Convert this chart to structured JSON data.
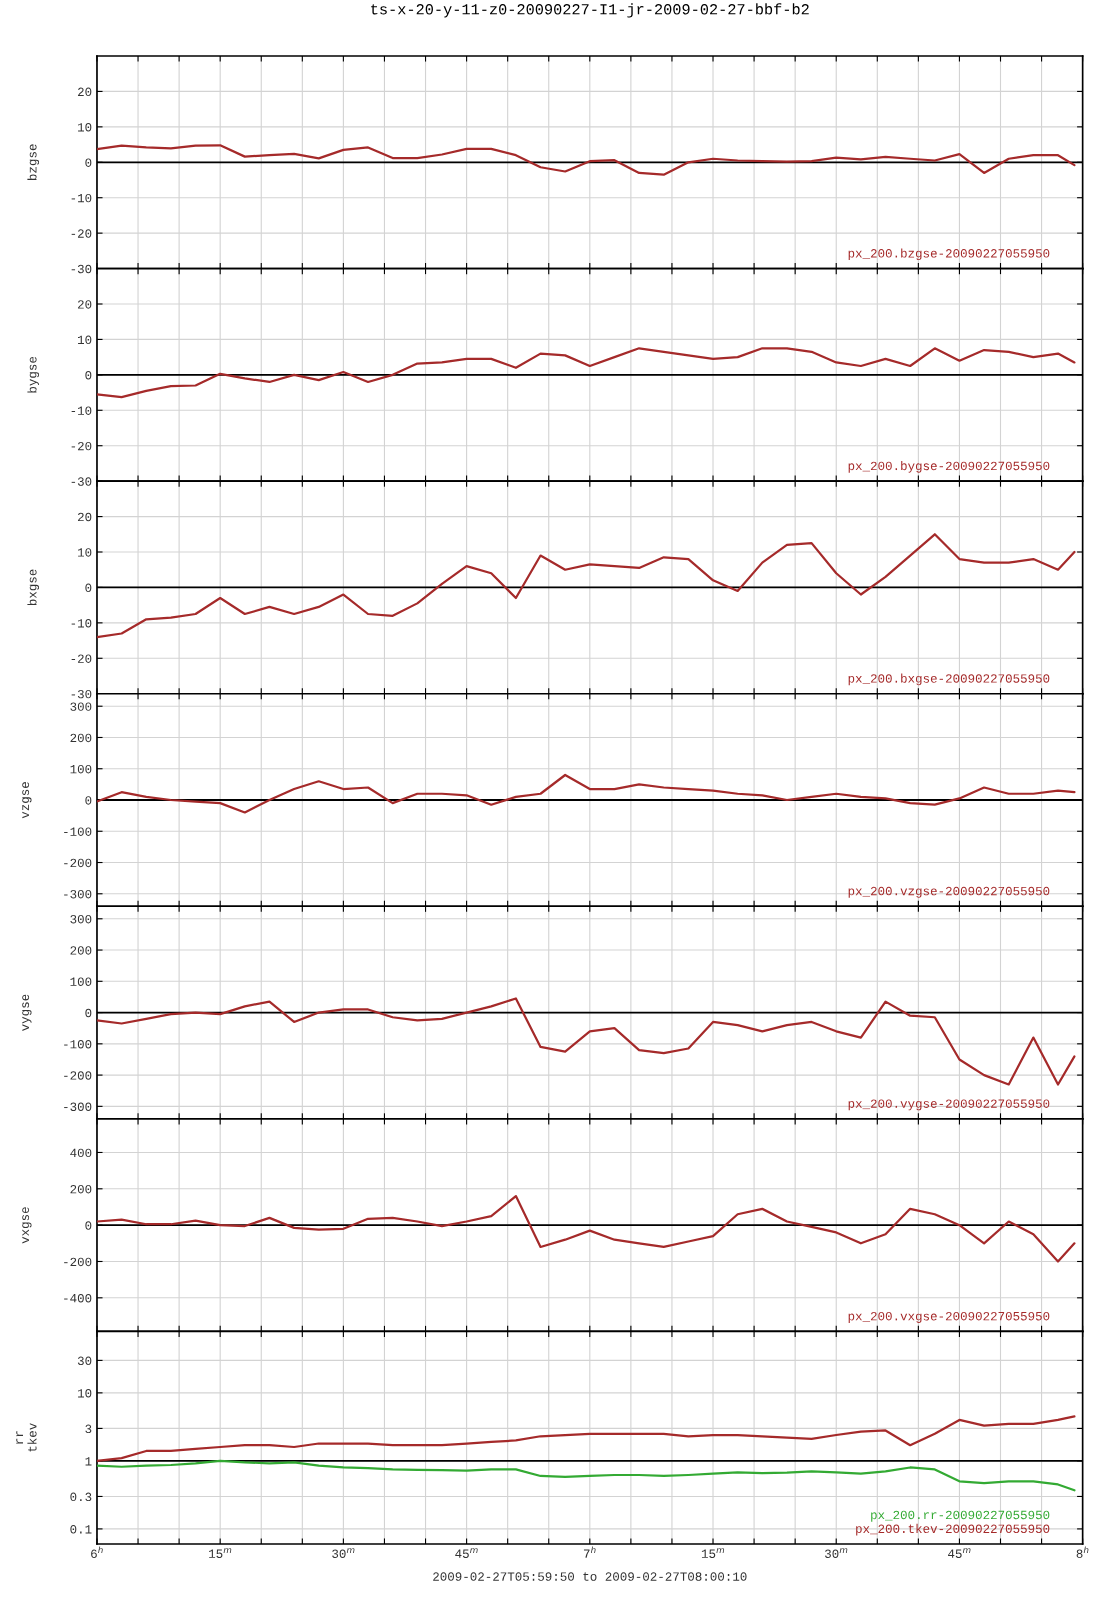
{
  "chart_data": [
    {
      "type": "line",
      "title": "ts-x-20-y-11-z0-20090227-I1-jr-2009-02-27-bbf-b2",
      "ylabel": "bzgse",
      "tick_labels": "y",
      "grid": true,
      "xlim": [
        "2009-02-27T06:00",
        "2009-02-27T08:00"
      ],
      "xticks": [
        {
          "value": "2009-02-27T06:00",
          "label": null
        },
        {
          "value": "2009-02-27T06:05",
          "label": null
        },
        {
          "value": "2009-02-27T06:10",
          "label": null
        },
        {
          "value": "2009-02-27T06:15",
          "label": null
        },
        {
          "value": "2009-02-27T06:20",
          "label": null
        },
        {
          "value": "2009-02-27T06:25",
          "label": null
        },
        {
          "value": "2009-02-27T06:30",
          "label": null
        },
        {
          "value": "2009-02-27T06:35",
          "label": null
        },
        {
          "value": "2009-02-27T06:40",
          "label": null
        },
        {
          "value": "2009-02-27T06:45",
          "label": null
        },
        {
          "value": "2009-02-27T06:50",
          "label": null
        },
        {
          "value": "2009-02-27T06:55",
          "label": null
        },
        {
          "value": "2009-02-27T07:00",
          "label": null
        },
        {
          "value": "2009-02-27T07:05",
          "label": null
        },
        {
          "value": "2009-02-27T07:10",
          "label": null
        },
        {
          "value": "2009-02-27T07:15",
          "label": null
        },
        {
          "value": "2009-02-27T07:20",
          "label": null
        },
        {
          "value": "2009-02-27T07:25",
          "label": null
        },
        {
          "value": "2009-02-27T07:30",
          "label": null
        },
        {
          "value": "2009-02-27T07:35",
          "label": null
        },
        {
          "value": "2009-02-27T07:40",
          "label": null
        },
        {
          "value": "2009-02-27T07:45",
          "label": null
        },
        {
          "value": "2009-02-27T07:50",
          "label": null
        },
        {
          "value": "2009-02-27T07:55",
          "label": null
        },
        {
          "value": "2009-02-27T08:00",
          "label": null
        }
      ],
      "ylim": [
        -30,
        30
      ],
      "yticks": [
        -30,
        -20,
        -10,
        0,
        10,
        20
      ],
      "ref_lines": [
        {
          "axis": "y",
          "value": 0,
          "color": "#000000"
        }
      ],
      "x": [
        "2009-02-27T06:00",
        "2009-02-27T06:03",
        "2009-02-27T06:06",
        "2009-02-27T06:09",
        "2009-02-27T06:12",
        "2009-02-27T06:15",
        "2009-02-27T06:18",
        "2009-02-27T06:21",
        "2009-02-27T06:24",
        "2009-02-27T06:27",
        "2009-02-27T06:30",
        "2009-02-27T06:33",
        "2009-02-27T06:36",
        "2009-02-27T06:39",
        "2009-02-27T06:42",
        "2009-02-27T06:45",
        "2009-02-27T06:48",
        "2009-02-27T06:51",
        "2009-02-27T06:54",
        "2009-02-27T06:57",
        "2009-02-27T07:00",
        "2009-02-27T07:03",
        "2009-02-27T07:06",
        "2009-02-27T07:09",
        "2009-02-27T07:12",
        "2009-02-27T07:15",
        "2009-02-27T07:18",
        "2009-02-27T07:21",
        "2009-02-27T07:24",
        "2009-02-27T07:27",
        "2009-02-27T07:30",
        "2009-02-27T07:33",
        "2009-02-27T07:36",
        "2009-02-27T07:39",
        "2009-02-27T07:42",
        "2009-02-27T07:45",
        "2009-02-27T07:48",
        "2009-02-27T07:51",
        "2009-02-27T07:54",
        "2009-02-27T07:57",
        "2009-02-27T07:59"
      ],
      "series": [
        {
          "name": "px_200.bzgse-20090227055950",
          "color": "#a52a2a",
          "values": [
            3.7,
            4.7,
            4.2,
            3.9,
            4.7,
            4.8,
            1.6,
            2.0,
            2.4,
            1.1,
            3.5,
            4.2,
            1.2,
            1.2,
            2.2,
            3.8,
            3.8,
            2.0,
            -1.4,
            -2.6,
            0.3,
            0.6,
            -3.0,
            -3.5,
            0,
            1.0,
            0.5,
            0.3,
            0.2,
            0.3,
            1.3,
            0.8,
            1.5,
            1.0,
            0.5,
            2.3,
            -3.0,
            1.0,
            2.0,
            2.0,
            -0.8
          ]
        }
      ]
    },
    {
      "type": "line",
      "ylabel": "bygse",
      "tick_labels": "y",
      "grid": true,
      "xlim": [
        "2009-02-27T06:00",
        "2009-02-27T08:00"
      ],
      "xticks": [
        {
          "value": "2009-02-27T06:00",
          "label": null
        },
        {
          "value": "2009-02-27T06:05",
          "label": null
        },
        {
          "value": "2009-02-27T06:10",
          "label": null
        },
        {
          "value": "2009-02-27T06:15",
          "label": null
        },
        {
          "value": "2009-02-27T06:20",
          "label": null
        },
        {
          "value": "2009-02-27T06:25",
          "label": null
        },
        {
          "value": "2009-02-27T06:30",
          "label": null
        },
        {
          "value": "2009-02-27T06:35",
          "label": null
        },
        {
          "value": "2009-02-27T06:40",
          "label": null
        },
        {
          "value": "2009-02-27T06:45",
          "label": null
        },
        {
          "value": "2009-02-27T06:50",
          "label": null
        },
        {
          "value": "2009-02-27T06:55",
          "label": null
        },
        {
          "value": "2009-02-27T07:00",
          "label": null
        },
        {
          "value": "2009-02-27T07:05",
          "label": null
        },
        {
          "value": "2009-02-27T07:10",
          "label": null
        },
        {
          "value": "2009-02-27T07:15",
          "label": null
        },
        {
          "value": "2009-02-27T07:20",
          "label": null
        },
        {
          "value": "2009-02-27T07:25",
          "label": null
        },
        {
          "value": "2009-02-27T07:30",
          "label": null
        },
        {
          "value": "2009-02-27T07:35",
          "label": null
        },
        {
          "value": "2009-02-27T07:40",
          "label": null
        },
        {
          "value": "2009-02-27T07:45",
          "label": null
        },
        {
          "value": "2009-02-27T07:50",
          "label": null
        },
        {
          "value": "2009-02-27T07:55",
          "label": null
        },
        {
          "value": "2009-02-27T08:00",
          "label": null
        }
      ],
      "ylim": [
        -30,
        30
      ],
      "yticks": [
        -30,
        -20,
        -10,
        0,
        10,
        20
      ],
      "ref_lines": [
        {
          "axis": "y",
          "value": 0,
          "color": "#000000"
        }
      ],
      "x": [
        "2009-02-27T06:00",
        "2009-02-27T06:03",
        "2009-02-27T06:06",
        "2009-02-27T06:09",
        "2009-02-27T06:12",
        "2009-02-27T06:15",
        "2009-02-27T06:18",
        "2009-02-27T06:21",
        "2009-02-27T06:24",
        "2009-02-27T06:27",
        "2009-02-27T06:30",
        "2009-02-27T06:33",
        "2009-02-27T06:36",
        "2009-02-27T06:39",
        "2009-02-27T06:42",
        "2009-02-27T06:45",
        "2009-02-27T06:48",
        "2009-02-27T06:51",
        "2009-02-27T06:54",
        "2009-02-27T06:57",
        "2009-02-27T07:00",
        "2009-02-27T07:03",
        "2009-02-27T07:06",
        "2009-02-27T07:09",
        "2009-02-27T07:12",
        "2009-02-27T07:15",
        "2009-02-27T07:18",
        "2009-02-27T07:21",
        "2009-02-27T07:24",
        "2009-02-27T07:27",
        "2009-02-27T07:30",
        "2009-02-27T07:33",
        "2009-02-27T07:36",
        "2009-02-27T07:39",
        "2009-02-27T07:42",
        "2009-02-27T07:45",
        "2009-02-27T07:48",
        "2009-02-27T07:51",
        "2009-02-27T07:54",
        "2009-02-27T07:57",
        "2009-02-27T07:59"
      ],
      "series": [
        {
          "name": "px_200.bygse-20090227055950",
          "color": "#a52a2a",
          "values": [
            -5.5,
            -6.3,
            -4.5,
            -3.2,
            -3,
            0.3,
            -1,
            -2,
            0,
            -1.5,
            0.8,
            -2,
            0,
            3.2,
            3.5,
            4.5,
            4.5,
            2,
            6,
            5.5,
            2.5,
            5,
            7.5,
            6.5,
            5.5,
            4.5,
            5,
            7.5,
            7.5,
            6.5,
            3.5,
            2.5,
            4.5,
            2.5,
            7.5,
            4,
            7,
            6.5,
            5,
            6,
            3.5
          ]
        }
      ]
    },
    {
      "type": "line",
      "ylabel": "bxgse",
      "tick_labels": "y",
      "grid": true,
      "xlim": [
        "2009-02-27T06:00",
        "2009-02-27T08:00"
      ],
      "xticks": [
        {
          "value": "2009-02-27T06:00",
          "label": null
        },
        {
          "value": "2009-02-27T06:05",
          "label": null
        },
        {
          "value": "2009-02-27T06:10",
          "label": null
        },
        {
          "value": "2009-02-27T06:15",
          "label": null
        },
        {
          "value": "2009-02-27T06:20",
          "label": null
        },
        {
          "value": "2009-02-27T06:25",
          "label": null
        },
        {
          "value": "2009-02-27T06:30",
          "label": null
        },
        {
          "value": "2009-02-27T06:35",
          "label": null
        },
        {
          "value": "2009-02-27T06:40",
          "label": null
        },
        {
          "value": "2009-02-27T06:45",
          "label": null
        },
        {
          "value": "2009-02-27T06:50",
          "label": null
        },
        {
          "value": "2009-02-27T06:55",
          "label": null
        },
        {
          "value": "2009-02-27T07:00",
          "label": null
        },
        {
          "value": "2009-02-27T07:05",
          "label": null
        },
        {
          "value": "2009-02-27T07:10",
          "label": null
        },
        {
          "value": "2009-02-27T07:15",
          "label": null
        },
        {
          "value": "2009-02-27T07:20",
          "label": null
        },
        {
          "value": "2009-02-27T07:25",
          "label": null
        },
        {
          "value": "2009-02-27T07:30",
          "label": null
        },
        {
          "value": "2009-02-27T07:35",
          "label": null
        },
        {
          "value": "2009-02-27T07:40",
          "label": null
        },
        {
          "value": "2009-02-27T07:45",
          "label": null
        },
        {
          "value": "2009-02-27T07:50",
          "label": null
        },
        {
          "value": "2009-02-27T07:55",
          "label": null
        },
        {
          "value": "2009-02-27T08:00",
          "label": null
        }
      ],
      "ylim": [
        -30,
        30
      ],
      "yticks": [
        -30,
        -20,
        -10,
        0,
        10,
        20
      ],
      "ref_lines": [
        {
          "axis": "y",
          "value": 0,
          "color": "#000000"
        }
      ],
      "x": [
        "2009-02-27T06:00",
        "2009-02-27T06:03",
        "2009-02-27T06:06",
        "2009-02-27T06:09",
        "2009-02-27T06:12",
        "2009-02-27T06:15",
        "2009-02-27T06:18",
        "2009-02-27T06:21",
        "2009-02-27T06:24",
        "2009-02-27T06:27",
        "2009-02-27T06:30",
        "2009-02-27T06:33",
        "2009-02-27T06:36",
        "2009-02-27T06:39",
        "2009-02-27T06:42",
        "2009-02-27T06:45",
        "2009-02-27T06:48",
        "2009-02-27T06:51",
        "2009-02-27T06:54",
        "2009-02-27T06:57",
        "2009-02-27T07:00",
        "2009-02-27T07:03",
        "2009-02-27T07:06",
        "2009-02-27T07:09",
        "2009-02-27T07:12",
        "2009-02-27T07:15",
        "2009-02-27T07:18",
        "2009-02-27T07:21",
        "2009-02-27T07:24",
        "2009-02-27T07:27",
        "2009-02-27T07:30",
        "2009-02-27T07:33",
        "2009-02-27T07:36",
        "2009-02-27T07:39",
        "2009-02-27T07:42",
        "2009-02-27T07:45",
        "2009-02-27T07:48",
        "2009-02-27T07:51",
        "2009-02-27T07:54",
        "2009-02-27T07:57",
        "2009-02-27T07:59"
      ],
      "series": [
        {
          "name": "px_200.bxgse-20090227055950",
          "color": "#a52a2a",
          "values": [
            -14,
            -13,
            -9,
            -8.5,
            -7.5,
            -3,
            -7.5,
            -5.5,
            -7.5,
            -5.5,
            -2,
            -7.5,
            -8,
            -4.5,
            1,
            6,
            4,
            -3,
            9,
            5,
            6.5,
            6,
            5.5,
            8.5,
            8,
            2,
            -1,
            7,
            12,
            12.5,
            4,
            -2,
            3,
            9,
            15,
            8,
            7,
            7,
            8,
            5,
            10
          ]
        }
      ]
    },
    {
      "type": "line",
      "ylabel": "vzgse",
      "tick_labels": "y",
      "grid": true,
      "xlim": [
        "2009-02-27T06:00",
        "2009-02-27T08:00"
      ],
      "xticks": [
        {
          "value": "2009-02-27T06:00",
          "label": null
        },
        {
          "value": "2009-02-27T06:05",
          "label": null
        },
        {
          "value": "2009-02-27T06:10",
          "label": null
        },
        {
          "value": "2009-02-27T06:15",
          "label": null
        },
        {
          "value": "2009-02-27T06:20",
          "label": null
        },
        {
          "value": "2009-02-27T06:25",
          "label": null
        },
        {
          "value": "2009-02-27T06:30",
          "label": null
        },
        {
          "value": "2009-02-27T06:35",
          "label": null
        },
        {
          "value": "2009-02-27T06:40",
          "label": null
        },
        {
          "value": "2009-02-27T06:45",
          "label": null
        },
        {
          "value": "2009-02-27T06:50",
          "label": null
        },
        {
          "value": "2009-02-27T06:55",
          "label": null
        },
        {
          "value": "2009-02-27T07:00",
          "label": null
        },
        {
          "value": "2009-02-27T07:05",
          "label": null
        },
        {
          "value": "2009-02-27T07:10",
          "label": null
        },
        {
          "value": "2009-02-27T07:15",
          "label": null
        },
        {
          "value": "2009-02-27T07:20",
          "label": null
        },
        {
          "value": "2009-02-27T07:25",
          "label": null
        },
        {
          "value": "2009-02-27T07:30",
          "label": null
        },
        {
          "value": "2009-02-27T07:35",
          "label": null
        },
        {
          "value": "2009-02-27T07:40",
          "label": null
        },
        {
          "value": "2009-02-27T07:45",
          "label": null
        },
        {
          "value": "2009-02-27T07:50",
          "label": null
        },
        {
          "value": "2009-02-27T07:55",
          "label": null
        },
        {
          "value": "2009-02-27T08:00",
          "label": null
        }
      ],
      "ylim": [
        -340,
        340
      ],
      "yticks": [
        -300,
        -200,
        -100,
        0,
        100,
        200,
        300
      ],
      "ref_lines": [
        {
          "axis": "y",
          "value": 0,
          "color": "#000000"
        }
      ],
      "x": [
        "2009-02-27T06:00",
        "2009-02-27T06:03",
        "2009-02-27T06:06",
        "2009-02-27T06:09",
        "2009-02-27T06:12",
        "2009-02-27T06:15",
        "2009-02-27T06:18",
        "2009-02-27T06:21",
        "2009-02-27T06:24",
        "2009-02-27T06:27",
        "2009-02-27T06:30",
        "2009-02-27T06:33",
        "2009-02-27T06:36",
        "2009-02-27T06:39",
        "2009-02-27T06:42",
        "2009-02-27T06:45",
        "2009-02-27T06:48",
        "2009-02-27T06:51",
        "2009-02-27T06:54",
        "2009-02-27T06:57",
        "2009-02-27T07:00",
        "2009-02-27T07:03",
        "2009-02-27T07:06",
        "2009-02-27T07:09",
        "2009-02-27T07:12",
        "2009-02-27T07:15",
        "2009-02-27T07:18",
        "2009-02-27T07:21",
        "2009-02-27T07:24",
        "2009-02-27T07:27",
        "2009-02-27T07:30",
        "2009-02-27T07:33",
        "2009-02-27T07:36",
        "2009-02-27T07:39",
        "2009-02-27T07:42",
        "2009-02-27T07:45",
        "2009-02-27T07:48",
        "2009-02-27T07:51",
        "2009-02-27T07:54",
        "2009-02-27T07:57",
        "2009-02-27T07:59"
      ],
      "series": [
        {
          "name": "px_200.vzgse-20090227055950",
          "color": "#a52a2a",
          "values": [
            -5,
            25,
            10,
            0,
            -5,
            -10,
            -40,
            0,
            35,
            60,
            35,
            40,
            -10,
            20,
            20,
            15,
            -15,
            10,
            20,
            80,
            35,
            35,
            50,
            40,
            35,
            30,
            20,
            15,
            0,
            10,
            20,
            10,
            5,
            -10,
            -15,
            5,
            40,
            20,
            20,
            30,
            25
          ]
        }
      ]
    },
    {
      "type": "line",
      "ylabel": "vygse",
      "tick_labels": "y",
      "grid": true,
      "xlim": [
        "2009-02-27T06:00",
        "2009-02-27T08:00"
      ],
      "xticks": [
        {
          "value": "2009-02-27T06:00",
          "label": null
        },
        {
          "value": "2009-02-27T06:05",
          "label": null
        },
        {
          "value": "2009-02-27T06:10",
          "label": null
        },
        {
          "value": "2009-02-27T06:15",
          "label": null
        },
        {
          "value": "2009-02-27T06:20",
          "label": null
        },
        {
          "value": "2009-02-27T06:25",
          "label": null
        },
        {
          "value": "2009-02-27T06:30",
          "label": null
        },
        {
          "value": "2009-02-27T06:35",
          "label": null
        },
        {
          "value": "2009-02-27T06:40",
          "label": null
        },
        {
          "value": "2009-02-27T06:45",
          "label": null
        },
        {
          "value": "2009-02-27T06:50",
          "label": null
        },
        {
          "value": "2009-02-27T06:55",
          "label": null
        },
        {
          "value": "2009-02-27T07:00",
          "label": null
        },
        {
          "value": "2009-02-27T07:05",
          "label": null
        },
        {
          "value": "2009-02-27T07:10",
          "label": null
        },
        {
          "value": "2009-02-27T07:15",
          "label": null
        },
        {
          "value": "2009-02-27T07:20",
          "label": null
        },
        {
          "value": "2009-02-27T07:25",
          "label": null
        },
        {
          "value": "2009-02-27T07:30",
          "label": null
        },
        {
          "value": "2009-02-27T07:35",
          "label": null
        },
        {
          "value": "2009-02-27T07:40",
          "label": null
        },
        {
          "value": "2009-02-27T07:45",
          "label": null
        },
        {
          "value": "2009-02-27T07:50",
          "label": null
        },
        {
          "value": "2009-02-27T07:55",
          "label": null
        },
        {
          "value": "2009-02-27T08:00",
          "label": null
        }
      ],
      "ylim": [
        -340,
        340
      ],
      "yticks": [
        -300,
        -200,
        -100,
        0,
        100,
        200,
        300
      ],
      "ref_lines": [
        {
          "axis": "y",
          "value": 0,
          "color": "#000000"
        }
      ],
      "x": [
        "2009-02-27T06:00",
        "2009-02-27T06:03",
        "2009-02-27T06:06",
        "2009-02-27T06:09",
        "2009-02-27T06:12",
        "2009-02-27T06:15",
        "2009-02-27T06:18",
        "2009-02-27T06:21",
        "2009-02-27T06:24",
        "2009-02-27T06:27",
        "2009-02-27T06:30",
        "2009-02-27T06:33",
        "2009-02-27T06:36",
        "2009-02-27T06:39",
        "2009-02-27T06:42",
        "2009-02-27T06:45",
        "2009-02-27T06:48",
        "2009-02-27T06:51",
        "2009-02-27T06:54",
        "2009-02-27T06:57",
        "2009-02-27T07:00",
        "2009-02-27T07:03",
        "2009-02-27T07:06",
        "2009-02-27T07:09",
        "2009-02-27T07:12",
        "2009-02-27T07:15",
        "2009-02-27T07:18",
        "2009-02-27T07:21",
        "2009-02-27T07:24",
        "2009-02-27T07:27",
        "2009-02-27T07:30",
        "2009-02-27T07:33",
        "2009-02-27T07:36",
        "2009-02-27T07:39",
        "2009-02-27T07:42",
        "2009-02-27T07:45",
        "2009-02-27T07:48",
        "2009-02-27T07:51",
        "2009-02-27T07:54",
        "2009-02-27T07:57",
        "2009-02-27T07:59"
      ],
      "series": [
        {
          "name": "px_200.vygse-20090227055950",
          "color": "#a52a2a",
          "values": [
            -25,
            -35,
            -20,
            -5,
            0,
            -5,
            20,
            35,
            -30,
            0,
            10,
            10,
            -15,
            -25,
            -20,
            0,
            20,
            45,
            -110,
            -125,
            -60,
            -50,
            -120,
            -130,
            -115,
            -30,
            -40,
            -60,
            -40,
            -30,
            -60,
            -80,
            35,
            -10,
            -15,
            -150,
            -200,
            -230,
            -80,
            -230,
            -140
          ]
        }
      ]
    },
    {
      "type": "line",
      "ylabel": "vxgse",
      "tick_labels": "y",
      "grid": true,
      "xlim": [
        "2009-02-27T06:00",
        "2009-02-27T08:00"
      ],
      "xticks": [
        {
          "value": "2009-02-27T06:00",
          "label": null
        },
        {
          "value": "2009-02-27T06:05",
          "label": null
        },
        {
          "value": "2009-02-27T06:10",
          "label": null
        },
        {
          "value": "2009-02-27T06:15",
          "label": null
        },
        {
          "value": "2009-02-27T06:20",
          "label": null
        },
        {
          "value": "2009-02-27T06:25",
          "label": null
        },
        {
          "value": "2009-02-27T06:30",
          "label": null
        },
        {
          "value": "2009-02-27T06:35",
          "label": null
        },
        {
          "value": "2009-02-27T06:40",
          "label": null
        },
        {
          "value": "2009-02-27T06:45",
          "label": null
        },
        {
          "value": "2009-02-27T06:50",
          "label": null
        },
        {
          "value": "2009-02-27T06:55",
          "label": null
        },
        {
          "value": "2009-02-27T07:00",
          "label": null
        },
        {
          "value": "2009-02-27T07:05",
          "label": null
        },
        {
          "value": "2009-02-27T07:10",
          "label": null
        },
        {
          "value": "2009-02-27T07:15",
          "label": null
        },
        {
          "value": "2009-02-27T07:20",
          "label": null
        },
        {
          "value": "2009-02-27T07:25",
          "label": null
        },
        {
          "value": "2009-02-27T07:30",
          "label": null
        },
        {
          "value": "2009-02-27T07:35",
          "label": null
        },
        {
          "value": "2009-02-27T07:40",
          "label": null
        },
        {
          "value": "2009-02-27T07:45",
          "label": null
        },
        {
          "value": "2009-02-27T07:50",
          "label": null
        },
        {
          "value": "2009-02-27T07:55",
          "label": null
        },
        {
          "value": "2009-02-27T08:00",
          "label": null
        }
      ],
      "ylim": [
        -585,
        585
      ],
      "yticks": [
        -400,
        -200,
        0,
        200,
        400
      ],
      "ref_lines": [
        {
          "axis": "y",
          "value": 0,
          "color": "#000000"
        }
      ],
      "x": [
        "2009-02-27T06:00",
        "2009-02-27T06:03",
        "2009-02-27T06:06",
        "2009-02-27T06:09",
        "2009-02-27T06:12",
        "2009-02-27T06:15",
        "2009-02-27T06:18",
        "2009-02-27T06:21",
        "2009-02-27T06:24",
        "2009-02-27T06:27",
        "2009-02-27T06:30",
        "2009-02-27T06:33",
        "2009-02-27T06:36",
        "2009-02-27T06:39",
        "2009-02-27T06:42",
        "2009-02-27T06:45",
        "2009-02-27T06:48",
        "2009-02-27T06:51",
        "2009-02-27T06:54",
        "2009-02-27T06:57",
        "2009-02-27T07:00",
        "2009-02-27T07:03",
        "2009-02-27T07:06",
        "2009-02-27T07:09",
        "2009-02-27T07:12",
        "2009-02-27T07:15",
        "2009-02-27T07:18",
        "2009-02-27T07:21",
        "2009-02-27T07:24",
        "2009-02-27T07:27",
        "2009-02-27T07:30",
        "2009-02-27T07:33",
        "2009-02-27T07:36",
        "2009-02-27T07:39",
        "2009-02-27T07:42",
        "2009-02-27T07:45",
        "2009-02-27T07:48",
        "2009-02-27T07:51",
        "2009-02-27T07:54",
        "2009-02-27T07:57",
        "2009-02-27T07:59"
      ],
      "series": [
        {
          "name": "px_200.vxgse-20090227055950",
          "color": "#a52a2a",
          "values": [
            20,
            30,
            5,
            5,
            25,
            0,
            -5,
            40,
            -15,
            -25,
            -20,
            35,
            40,
            20,
            -5,
            20,
            50,
            160,
            -120,
            -80,
            -30,
            -80,
            -100,
            -120,
            -90,
            -60,
            60,
            90,
            20,
            -10,
            -40,
            -100,
            -50,
            90,
            60,
            0,
            -100,
            20,
            -50,
            -200,
            -100
          ]
        }
      ]
    },
    {
      "type": "line",
      "ylabel": "rr\ntkev",
      "xlabel": "2009-02-27T05:59:50 to 2009-02-27T08:00:10",
      "log": "y",
      "grid": true,
      "xlim": [
        "2009-02-27T06:00",
        "2009-02-27T08:00"
      ],
      "xticks": [
        {
          "value": "2009-02-27T06:00",
          "label": "6$^{h}$"
        },
        {
          "value": "2009-02-27T06:05",
          "label": null
        },
        {
          "value": "2009-02-27T06:10",
          "label": null
        },
        {
          "value": "2009-02-27T06:15",
          "label": "15$^{m}$"
        },
        {
          "value": "2009-02-27T06:20",
          "label": null
        },
        {
          "value": "2009-02-27T06:25",
          "label": null
        },
        {
          "value": "2009-02-27T06:30",
          "label": "30$^{m}$"
        },
        {
          "value": "2009-02-27T06:35",
          "label": null
        },
        {
          "value": "2009-02-27T06:40",
          "label": null
        },
        {
          "value": "2009-02-27T06:45",
          "label": "45$^{m}$"
        },
        {
          "value": "2009-02-27T06:50",
          "label": null
        },
        {
          "value": "2009-02-27T06:55",
          "label": null
        },
        {
          "value": "2009-02-27T07:00",
          "label": "7$^{h}$"
        },
        {
          "value": "2009-02-27T07:05",
          "label": null
        },
        {
          "value": "2009-02-27T07:10",
          "label": null
        },
        {
          "value": "2009-02-27T07:15",
          "label": "15$^{m}$"
        },
        {
          "value": "2009-02-27T07:20",
          "label": null
        },
        {
          "value": "2009-02-27T07:25",
          "label": null
        },
        {
          "value": "2009-02-27T07:30",
          "label": "30$^{m}$"
        },
        {
          "value": "2009-02-27T07:35",
          "label": null
        },
        {
          "value": "2009-02-27T07:40",
          "label": null
        },
        {
          "value": "2009-02-27T07:45",
          "label": "45$^{m}$"
        },
        {
          "value": "2009-02-27T07:50",
          "label": null
        },
        {
          "value": "2009-02-27T07:55",
          "label": null
        },
        {
          "value": "2009-02-27T08:00",
          "label": "8$^{h}$"
        }
      ],
      "ylim": [
        0.06,
        80
      ],
      "yticks": [
        0.1,
        0.3,
        1,
        3,
        10,
        30
      ],
      "ref_lines": [
        {
          "axis": "y",
          "value": 1,
          "color": "#000000"
        }
      ],
      "x": [
        "2009-02-27T06:00",
        "2009-02-27T06:03",
        "2009-02-27T06:06",
        "2009-02-27T06:09",
        "2009-02-27T06:12",
        "2009-02-27T06:15",
        "2009-02-27T06:18",
        "2009-02-27T06:21",
        "2009-02-27T06:24",
        "2009-02-27T06:27",
        "2009-02-27T06:30",
        "2009-02-27T06:33",
        "2009-02-27T06:36",
        "2009-02-27T06:39",
        "2009-02-27T06:42",
        "2009-02-27T06:45",
        "2009-02-27T06:48",
        "2009-02-27T06:51",
        "2009-02-27T06:54",
        "2009-02-27T06:57",
        "2009-02-27T07:00",
        "2009-02-27T07:03",
        "2009-02-27T07:06",
        "2009-02-27T07:09",
        "2009-02-27T07:12",
        "2009-02-27T07:15",
        "2009-02-27T07:18",
        "2009-02-27T07:21",
        "2009-02-27T07:24",
        "2009-02-27T07:27",
        "2009-02-27T07:30",
        "2009-02-27T07:33",
        "2009-02-27T07:36",
        "2009-02-27T07:39",
        "2009-02-27T07:42",
        "2009-02-27T07:45",
        "2009-02-27T07:48",
        "2009-02-27T07:51",
        "2009-02-27T07:54",
        "2009-02-27T07:57",
        "2009-02-27T07:59"
      ],
      "series": [
        {
          "name": "px_200.rr-20090227055950",
          "color": "#33aa33",
          "values": [
            0.85,
            0.82,
            0.85,
            0.87,
            0.92,
            1.0,
            0.95,
            0.92,
            0.95,
            0.85,
            0.8,
            0.78,
            0.75,
            0.74,
            0.73,
            0.72,
            0.75,
            0.75,
            0.6,
            0.58,
            0.6,
            0.62,
            0.62,
            0.6,
            0.62,
            0.65,
            0.68,
            0.66,
            0.67,
            0.7,
            0.68,
            0.65,
            0.7,
            0.8,
            0.75,
            0.5,
            0.47,
            0.5,
            0.5,
            0.45,
            0.37
          ]
        },
        {
          "name": "px_200.tkev-20090227055950",
          "color": "#a52a2a",
          "values": [
            1.0,
            1.1,
            1.4,
            1.4,
            1.5,
            1.6,
            1.7,
            1.7,
            1.6,
            1.8,
            1.8,
            1.8,
            1.7,
            1.7,
            1.7,
            1.8,
            1.9,
            2.0,
            2.3,
            2.4,
            2.5,
            2.5,
            2.5,
            2.5,
            2.3,
            2.4,
            2.4,
            2.3,
            2.2,
            2.1,
            2.4,
            2.7,
            2.8,
            1.7,
            2.5,
            4.0,
            3.3,
            3.5,
            3.5,
            4.0,
            4.5
          ]
        }
      ]
    }
  ]
}
